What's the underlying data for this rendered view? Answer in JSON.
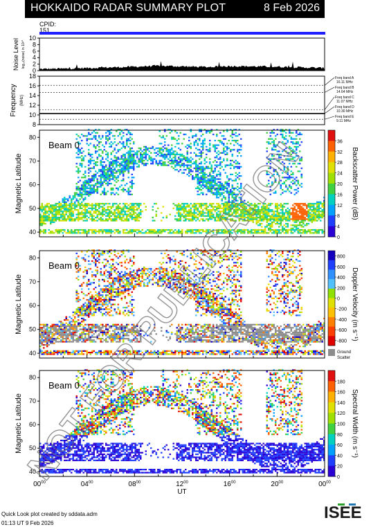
{
  "header": {
    "title": "HOKKAIDO RADAR SUMMARY PLOT",
    "date": "8 Feb 2026"
  },
  "cpid": {
    "label": "CPID:",
    "value": "151"
  },
  "noise": {
    "label": "Noise Level",
    "sublabel": "log₁₀(noise) in 10¹⁰",
    "ticks": [
      "0",
      "2",
      "4",
      "6",
      "8",
      "10"
    ]
  },
  "frequency": {
    "label": "Frequency",
    "unit": "(MHz)",
    "ticks": [
      "8",
      "10",
      "12",
      "14",
      "16",
      "18"
    ],
    "bands": [
      {
        "name": "Freq band A",
        "value": "16.11 MHz"
      },
      {
        "name": "Freq band B",
        "value": "14.64 MHz"
      },
      {
        "name": "Freq band C",
        "value": "11.07 MHz"
      },
      {
        "name": "Freq band D",
        "value": "10.30 MHz"
      },
      {
        "name": "Freq band E",
        "value": "9.11 MHz"
      }
    ]
  },
  "panels": [
    {
      "beam": "Beam  0",
      "ylabel": "Magnetic Latitude",
      "cbar_label": "Backscatter Power (dB)",
      "cbar_ticks": [
        "0",
        "4",
        "8",
        "12",
        "16",
        "20",
        "24",
        "28",
        "32",
        "36"
      ]
    },
    {
      "beam": "Beam  0",
      "ylabel": "Magnetic Latitude",
      "cbar_label": "Doppler Velocity (m s⁻¹)",
      "cbar_ticks": [
        "800",
        "600",
        "400",
        "200",
        "0",
        "-200",
        "-400",
        "-600",
        "-800"
      ],
      "ground": "Ground",
      "scatter": "Scatter"
    },
    {
      "beam": "Beam  0",
      "ylabel": "Magnetic Latitude",
      "cbar_label": "Spectral Width (m s⁻¹)",
      "cbar_ticks": [
        "0",
        "20",
        "40",
        "60",
        "80",
        "100",
        "120",
        "140",
        "160",
        "180"
      ]
    }
  ],
  "lat_ticks": [
    "40",
    "50",
    "60",
    "70",
    "80"
  ],
  "xaxis": {
    "label": "UT",
    "ticks": [
      "00",
      "04",
      "08",
      "12",
      "16",
      "20",
      "00"
    ]
  },
  "watermark": "NOT FOR PUBLICATION",
  "credit": {
    "line1": "Quick Look plot created by sddata.adm",
    "line2": "01:13 UT  9 Feb 2026"
  },
  "logo": {
    "text": "ISEE"
  },
  "colors": {
    "header_bg": "#000000",
    "cpid_bar": "#1f1fff",
    "ground_scatter": "#8c8c8c"
  },
  "chart_data": [
    {
      "type": "area",
      "title": "Noise Level",
      "ylim": [
        0,
        10
      ],
      "xlim_hours_ut": [
        0,
        24
      ],
      "x": [
        0,
        2,
        4,
        6,
        8,
        10,
        12,
        14,
        16,
        18,
        20,
        22,
        24
      ],
      "values": [
        0.5,
        0.6,
        0.8,
        1.0,
        1.2,
        1.5,
        1.3,
        1.1,
        1.4,
        1.3,
        1.2,
        1.0,
        0.8
      ]
    },
    {
      "type": "line",
      "title": "Frequency",
      "ylim": [
        8,
        18
      ],
      "unit": "MHz",
      "series": [
        {
          "values": [
            10.3,
            10.3,
            10.3,
            10.3,
            10.3,
            10.3,
            10.3
          ]
        }
      ]
    },
    {
      "type": "heatmap",
      "title": "Backscatter Power",
      "cbar_range": [
        0,
        36
      ],
      "ylim": [
        38,
        83
      ],
      "xlim_hours_ut": [
        0,
        24
      ]
    },
    {
      "type": "heatmap",
      "title": "Doppler Velocity",
      "cbar_range": [
        -800,
        800
      ],
      "ylim": [
        38,
        83
      ],
      "xlim_hours_ut": [
        0,
        24
      ]
    },
    {
      "type": "heatmap",
      "title": "Spectral Width",
      "cbar_range": [
        0,
        180
      ],
      "ylim": [
        38,
        83
      ],
      "xlim_hours_ut": [
        0,
        24
      ]
    }
  ]
}
